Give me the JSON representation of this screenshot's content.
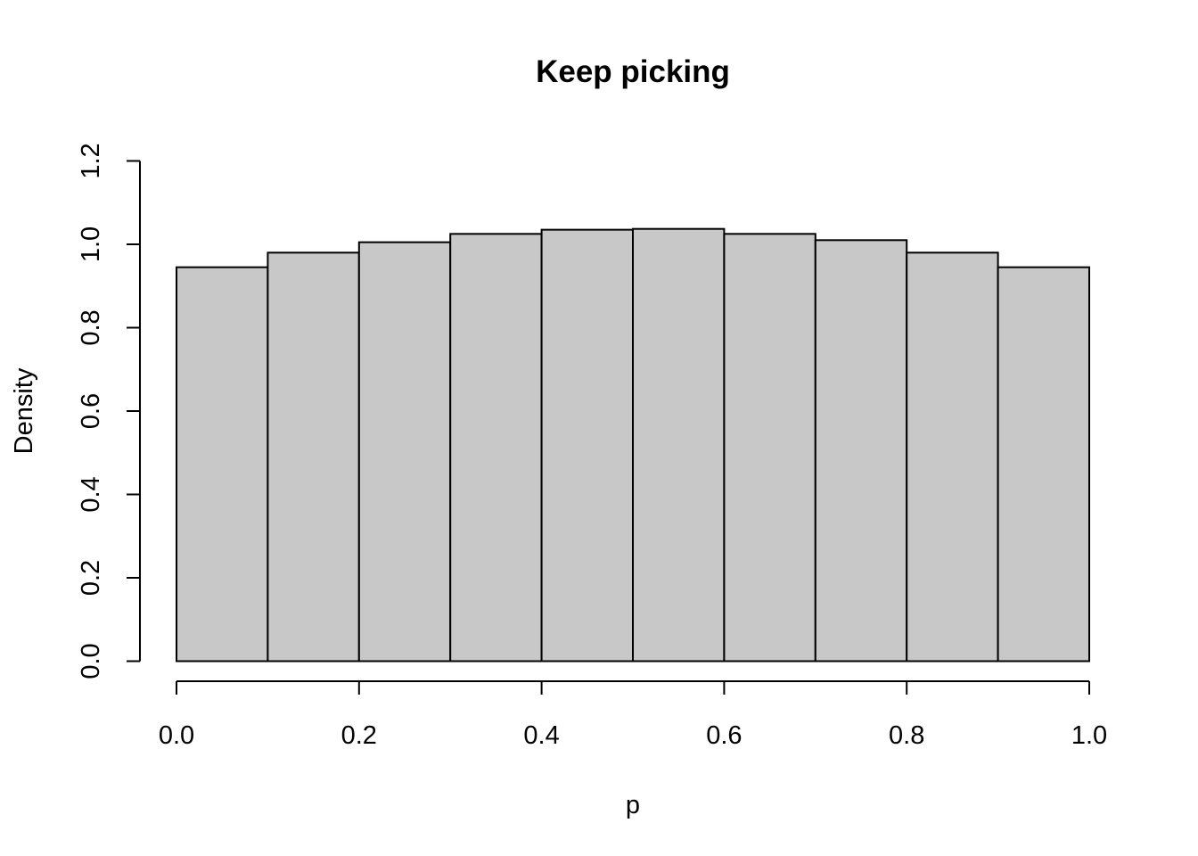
{
  "chart_data": {
    "type": "bar",
    "title": "Keep picking",
    "xlabel": "p",
    "ylabel": "Density",
    "xlim": [
      0.0,
      1.0
    ],
    "ylim": [
      0.0,
      1.2
    ],
    "bins": [
      {
        "x0": 0.0,
        "x1": 0.1,
        "density": 0.945
      },
      {
        "x0": 0.1,
        "x1": 0.2,
        "density": 0.98
      },
      {
        "x0": 0.2,
        "x1": 0.3,
        "density": 1.005
      },
      {
        "x0": 0.3,
        "x1": 0.4,
        "density": 1.025
      },
      {
        "x0": 0.4,
        "x1": 0.5,
        "density": 1.035
      },
      {
        "x0": 0.5,
        "x1": 0.6,
        "density": 1.037
      },
      {
        "x0": 0.6,
        "x1": 0.7,
        "density": 1.025
      },
      {
        "x0": 0.7,
        "x1": 0.8,
        "density": 1.01
      },
      {
        "x0": 0.8,
        "x1": 0.9,
        "density": 0.98
      },
      {
        "x0": 0.9,
        "x1": 1.0,
        "density": 0.945
      }
    ],
    "xticks": [
      {
        "value": 0.0,
        "label": "0.0"
      },
      {
        "value": 0.2,
        "label": "0.2"
      },
      {
        "value": 0.4,
        "label": "0.4"
      },
      {
        "value": 0.6,
        "label": "0.6"
      },
      {
        "value": 0.8,
        "label": "0.8"
      },
      {
        "value": 1.0,
        "label": "1.0"
      }
    ],
    "yticks": [
      {
        "value": 0.0,
        "label": "0.0"
      },
      {
        "value": 0.2,
        "label": "0.2"
      },
      {
        "value": 0.4,
        "label": "0.4"
      },
      {
        "value": 0.6,
        "label": "0.6"
      },
      {
        "value": 0.8,
        "label": "0.8"
      },
      {
        "value": 1.0,
        "label": "1.0"
      },
      {
        "value": 1.2,
        "label": "1.2"
      }
    ],
    "colors": {
      "bar_fill": "#c8c8c8",
      "bar_stroke": "#000000"
    },
    "grid": false,
    "legend": "none"
  }
}
